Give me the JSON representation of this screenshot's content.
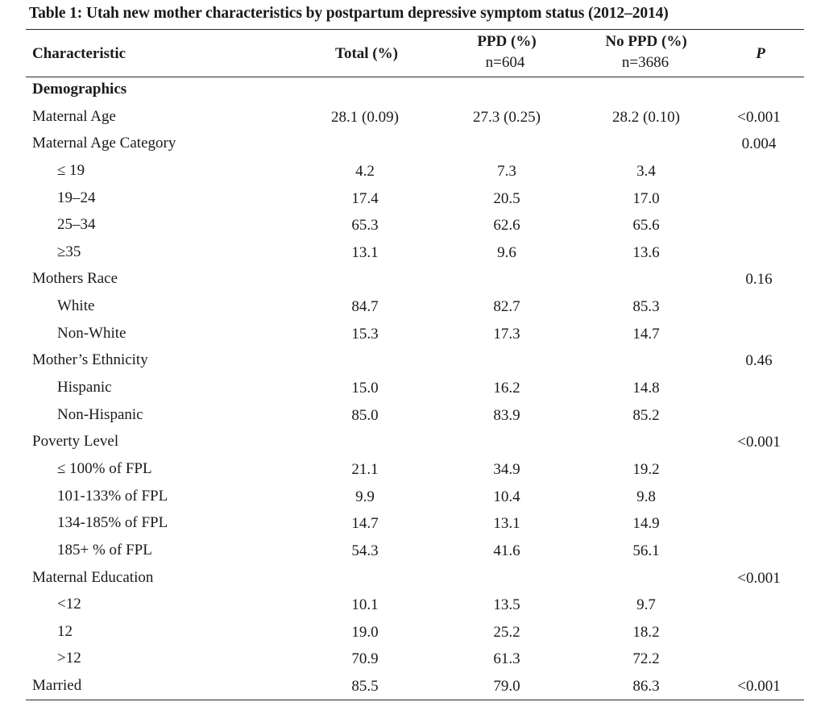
{
  "title": "Table 1: Utah new mother characteristics by postpartum depressive symptom status (2012–2014)",
  "headers": {
    "characteristic": "Characteristic",
    "total": "Total (%)",
    "ppd": "PPD (%)",
    "ppd_n": "n=604",
    "noppd": "No PPD (%)",
    "noppd_n": "n=3686",
    "p": "P"
  },
  "rows": [
    {
      "label": "Demographics",
      "total": "",
      "ppd": "",
      "noppd": "",
      "p": ""
    },
    {
      "label": "Maternal Age",
      "total": "28.1 (0.09)",
      "ppd": "27.3 (0.25)",
      "noppd": "28.2 (0.10)",
      "p": "<0.001"
    },
    {
      "label": "Maternal Age Category",
      "total": "",
      "ppd": "",
      "noppd": "",
      "p": "0.004"
    },
    {
      "label": "≤ 19",
      "total": "4.2",
      "ppd": "7.3",
      "noppd": "3.4",
      "p": ""
    },
    {
      "label": "19–24",
      "total": "17.4",
      "ppd": "20.5",
      "noppd": "17.0",
      "p": ""
    },
    {
      "label": "25–34",
      "total": "65.3",
      "ppd": "62.6",
      "noppd": "65.6",
      "p": ""
    },
    {
      "label": "≥35",
      "total": "13.1",
      "ppd": "9.6",
      "noppd": "13.6",
      "p": ""
    },
    {
      "label": "Mothers Race",
      "total": "",
      "ppd": "",
      "noppd": "",
      "p": "0.16"
    },
    {
      "label": "White",
      "total": "84.7",
      "ppd": "82.7",
      "noppd": "85.3",
      "p": ""
    },
    {
      "label": "Non-White",
      "total": "15.3",
      "ppd": "17.3",
      "noppd": "14.7",
      "p": ""
    },
    {
      "label": "Mother’s Ethnicity",
      "total": "",
      "ppd": "",
      "noppd": "",
      "p": "0.46"
    },
    {
      "label": "Hispanic",
      "total": "15.0",
      "ppd": "16.2",
      "noppd": "14.8",
      "p": ""
    },
    {
      "label": "Non-Hispanic",
      "total": "85.0",
      "ppd": "83.9",
      "noppd": "85.2",
      "p": ""
    },
    {
      "label": "Poverty Level",
      "total": "",
      "ppd": "",
      "noppd": "",
      "p": "<0.001"
    },
    {
      "label": "≤ 100% of FPL",
      "total": "21.1",
      "ppd": "34.9",
      "noppd": "19.2",
      "p": ""
    },
    {
      "label": "101-133% of FPL",
      "total": "9.9",
      "ppd": "10.4",
      "noppd": "9.8",
      "p": ""
    },
    {
      "label": "134-185% of FPL",
      "total": "14.7",
      "ppd": "13.1",
      "noppd": "14.9",
      "p": ""
    },
    {
      "label": "185+ % of FPL",
      "total": "54.3",
      "ppd": "41.6",
      "noppd": "56.1",
      "p": ""
    },
    {
      "label": "Maternal Education",
      "total": "",
      "ppd": "",
      "noppd": "",
      "p": "<0.001"
    },
    {
      "label": "<12",
      "total": "10.1",
      "ppd": "13.5",
      "noppd": "9.7",
      "p": ""
    },
    {
      "label": "12",
      "total": "19.0",
      "ppd": "25.2",
      "noppd": "18.2",
      "p": ""
    },
    {
      "label": ">12",
      "total": "70.9",
      "ppd": "61.3",
      "noppd": "72.2",
      "p": ""
    },
    {
      "label": "Married",
      "total": "85.5",
      "ppd": "79.0",
      "noppd": "86.3",
      "p": "<0.001"
    }
  ]
}
